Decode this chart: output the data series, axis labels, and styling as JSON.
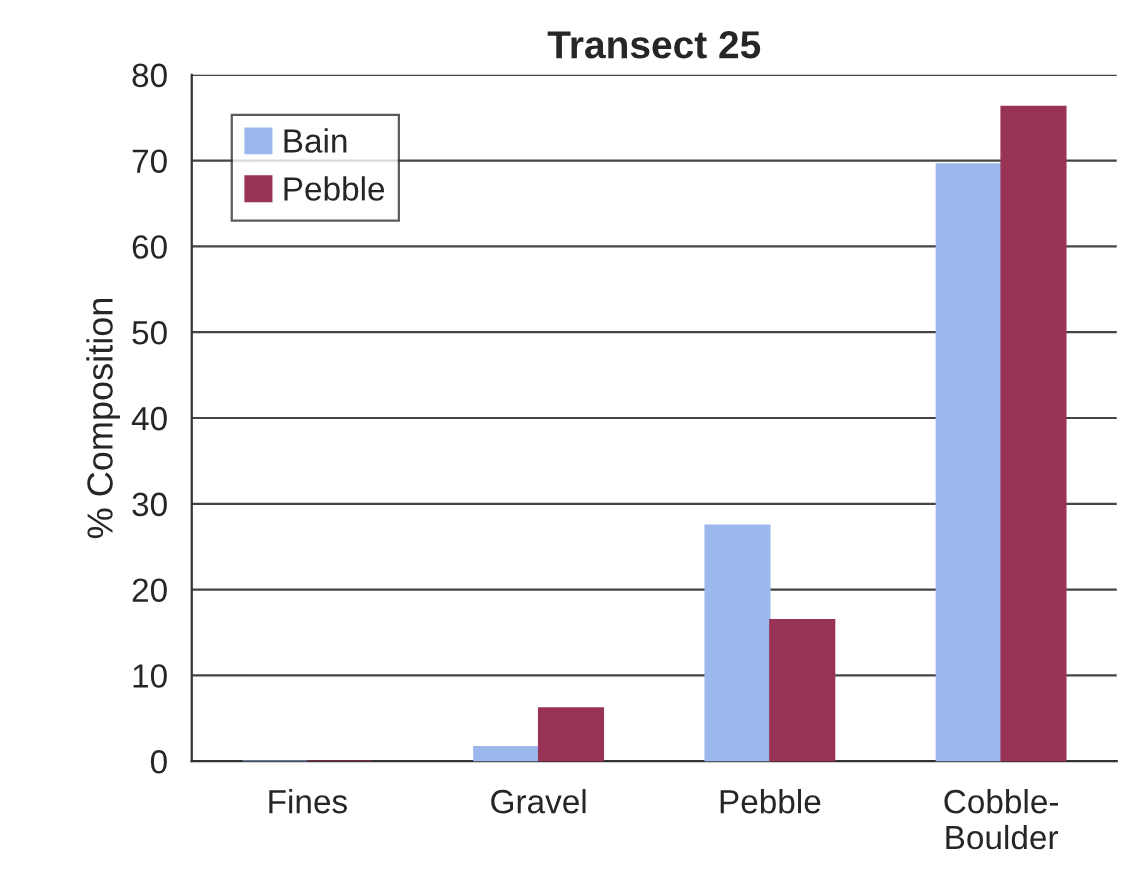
{
  "chart_data": {
    "type": "bar",
    "title": "Transect 25",
    "ylabel": "% Composition",
    "categories": [
      "Fines",
      "Gravel",
      "Pebble",
      "Cobble-\nBoulder"
    ],
    "series": [
      {
        "name": "Bain",
        "color": "#9bb8ec",
        "values": [
          0,
          1.7,
          27.5,
          69.6
        ]
      },
      {
        "name": "Pebble",
        "color": "#993355",
        "values": [
          0,
          6.2,
          16.5,
          76.3
        ]
      }
    ],
    "ylim": [
      0,
      80
    ],
    "yticks": [
      0,
      10,
      20,
      30,
      40,
      50,
      60,
      70,
      80
    ],
    "grid": "y",
    "legend": "top left"
  }
}
